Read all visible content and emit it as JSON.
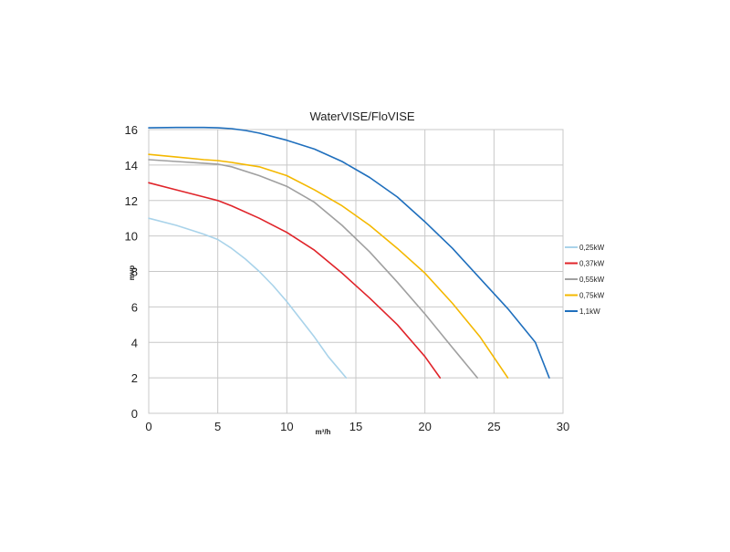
{
  "chart_data": {
    "type": "line",
    "title": "WaterVISE/FloVISE",
    "xlabel": "m³/h",
    "ylabel": "mvp",
    "xlim": [
      0,
      30
    ],
    "ylim": [
      0,
      16
    ],
    "xticks": [
      0,
      5,
      10,
      15,
      20,
      25,
      30
    ],
    "yticks": [
      0,
      2,
      4,
      6,
      8,
      10,
      12,
      14,
      16
    ],
    "grid": true,
    "legend_position": "right",
    "series": [
      {
        "name": "0,25kW",
        "color": "#a9d3ea",
        "x": [
          0,
          2,
          4,
          5,
          6,
          7,
          8,
          9,
          10,
          11,
          12,
          13,
          14.3
        ],
        "y": [
          11.0,
          10.6,
          10.1,
          9.8,
          9.3,
          8.7,
          8.0,
          7.2,
          6.3,
          5.3,
          4.3,
          3.2,
          2.0
        ]
      },
      {
        "name": "0,37kW",
        "color": "#e0242a",
        "x": [
          0,
          2,
          4,
          5,
          6,
          8,
          10,
          12,
          14,
          16,
          18,
          20,
          21.1
        ],
        "y": [
          13.0,
          12.6,
          12.2,
          12.0,
          11.7,
          11.0,
          10.2,
          9.2,
          7.9,
          6.5,
          5.0,
          3.2,
          2.0
        ]
      },
      {
        "name": "0,55kW",
        "color": "#a0a0a0",
        "x": [
          0,
          2,
          4,
          5,
          6,
          8,
          10,
          12,
          14,
          16,
          18,
          20,
          22,
          23.8
        ],
        "y": [
          14.3,
          14.2,
          14.1,
          14.05,
          13.9,
          13.4,
          12.8,
          11.9,
          10.6,
          9.1,
          7.4,
          5.6,
          3.7,
          2.0
        ]
      },
      {
        "name": "0,75kW",
        "color": "#f4b800",
        "x": [
          0,
          2,
          4,
          5,
          6,
          8,
          10,
          12,
          14,
          16,
          18,
          20,
          22,
          24,
          26.0
        ],
        "y": [
          14.6,
          14.45,
          14.3,
          14.25,
          14.15,
          13.9,
          13.4,
          12.6,
          11.7,
          10.6,
          9.3,
          7.9,
          6.2,
          4.3,
          2.0
        ]
      },
      {
        "name": "1,1kW",
        "color": "#1f6fbd",
        "x": [
          0,
          2,
          4,
          5,
          6,
          7,
          8,
          10,
          12,
          14,
          16,
          18,
          20,
          22,
          24,
          26,
          28,
          29.0
        ],
        "y": [
          16.1,
          16.12,
          16.12,
          16.1,
          16.05,
          15.95,
          15.8,
          15.4,
          14.9,
          14.2,
          13.3,
          12.2,
          10.8,
          9.3,
          7.6,
          5.9,
          4.0,
          2.0
        ]
      }
    ]
  }
}
